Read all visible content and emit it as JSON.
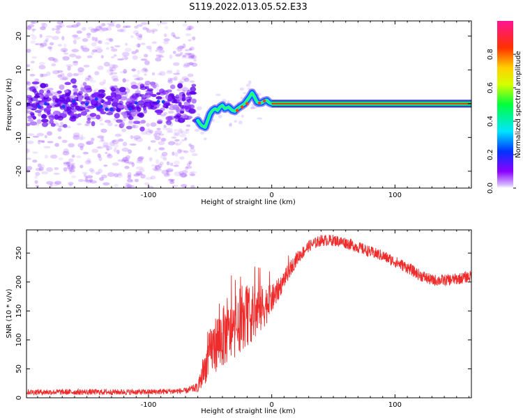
{
  "title": "S119.2022.013.05.52.E33",
  "chart_data": [
    {
      "type": "heatmap",
      "title": "S119.2022.013.05.52.E33",
      "xlabel": "Height of straight line (km)",
      "ylabel": "Frequency (Hz)",
      "xlim": [
        -199,
        162
      ],
      "ylim": [
        -25,
        24.5
      ],
      "x_ticks": [
        -100,
        0,
        100
      ],
      "x_tick_labels": [
        "-100",
        "0",
        "100"
      ],
      "y_ticks": [
        20,
        10,
        0,
        -10,
        -20
      ],
      "y_tick_labels": [
        "20",
        "10",
        "0",
        "-10",
        "-20"
      ],
      "colorbar": {
        "label": "Normalized spectral amplitude",
        "range": [
          0,
          1
        ],
        "ticks": [
          0,
          0.2,
          0.4,
          0.6,
          0.8
        ],
        "tick_labels": [
          "0.0",
          "0.2",
          "0.4",
          "0.6",
          "0.8"
        ],
        "colormap": [
          "#ffffff",
          "#8a00ff",
          "#0033ff",
          "#00e5ff",
          "#00ff3c",
          "#d4ff00",
          "#ffd000",
          "#ff3000",
          "#ff1493"
        ]
      },
      "ridge": {
        "x": [
          -60,
          -57,
          -54,
          -52,
          -50,
          -48,
          -46,
          -44,
          -42,
          -40,
          -38,
          -35,
          -32,
          -30,
          -28,
          -26,
          -24,
          -22,
          -20,
          -18,
          -16,
          -14,
          -12,
          -10,
          -8,
          -6,
          -4,
          -2,
          0,
          5,
          10,
          40,
          80,
          120,
          162
        ],
        "y": [
          -5,
          -6.5,
          -7,
          -5,
          -3,
          -2,
          -1.5,
          -2,
          -1,
          -0.5,
          -1.5,
          -1,
          -2,
          -2.2,
          -1.5,
          -1,
          -0.5,
          0,
          1,
          2,
          3.2,
          2,
          0.5,
          0.2,
          0.3,
          0.8,
          1,
          0.3,
          0,
          0,
          0,
          0,
          0,
          0,
          0
        ]
      },
      "noise_region": {
        "x_range": [
          -199,
          -62
        ],
        "y_range": [
          -25,
          24.5
        ],
        "amplitude": "low"
      },
      "central_band": {
        "x_range": [
          -199,
          -62
        ],
        "y_center": 0,
        "half_width": 4
      }
    },
    {
      "type": "line",
      "xlabel": "Height of straight line (km)",
      "ylabel": "SNR (10 * v/v)",
      "xlim": [
        -199,
        162
      ],
      "ylim": [
        0,
        290
      ],
      "x_ticks": [
        -100,
        0,
        100
      ],
      "x_tick_labels": [
        "-100",
        "0",
        "100"
      ],
      "y_ticks": [
        0,
        50,
        100,
        150,
        200,
        250
      ],
      "y_tick_labels": [
        "0",
        "50",
        "100",
        "150",
        "200",
        "250"
      ],
      "color": "#ee2c2c",
      "envelope": {
        "x": [
          -199,
          -150,
          -100,
          -70,
          -60,
          -55,
          -50,
          -45,
          -40,
          -35,
          -30,
          -25,
          -20,
          -15,
          -10,
          -5,
          0,
          5,
          10,
          20,
          30,
          40,
          50,
          60,
          70,
          80,
          90,
          100,
          110,
          120,
          130,
          140,
          150,
          162
        ],
        "y": [
          10,
          10,
          10,
          12,
          18,
          45,
          80,
          95,
          105,
          110,
          115,
          125,
          140,
          145,
          150,
          160,
          170,
          185,
          205,
          240,
          262,
          272,
          272,
          268,
          260,
          252,
          245,
          235,
          225,
          212,
          203,
          203,
          205,
          210
        ],
        "noise": [
          5,
          5,
          5,
          5,
          8,
          25,
          40,
          50,
          55,
          50,
          45,
          45,
          50,
          50,
          45,
          35,
          25,
          20,
          15,
          12,
          10,
          10,
          10,
          10,
          10,
          10,
          10,
          10,
          10,
          10,
          10,
          10,
          10,
          10
        ]
      }
    }
  ]
}
